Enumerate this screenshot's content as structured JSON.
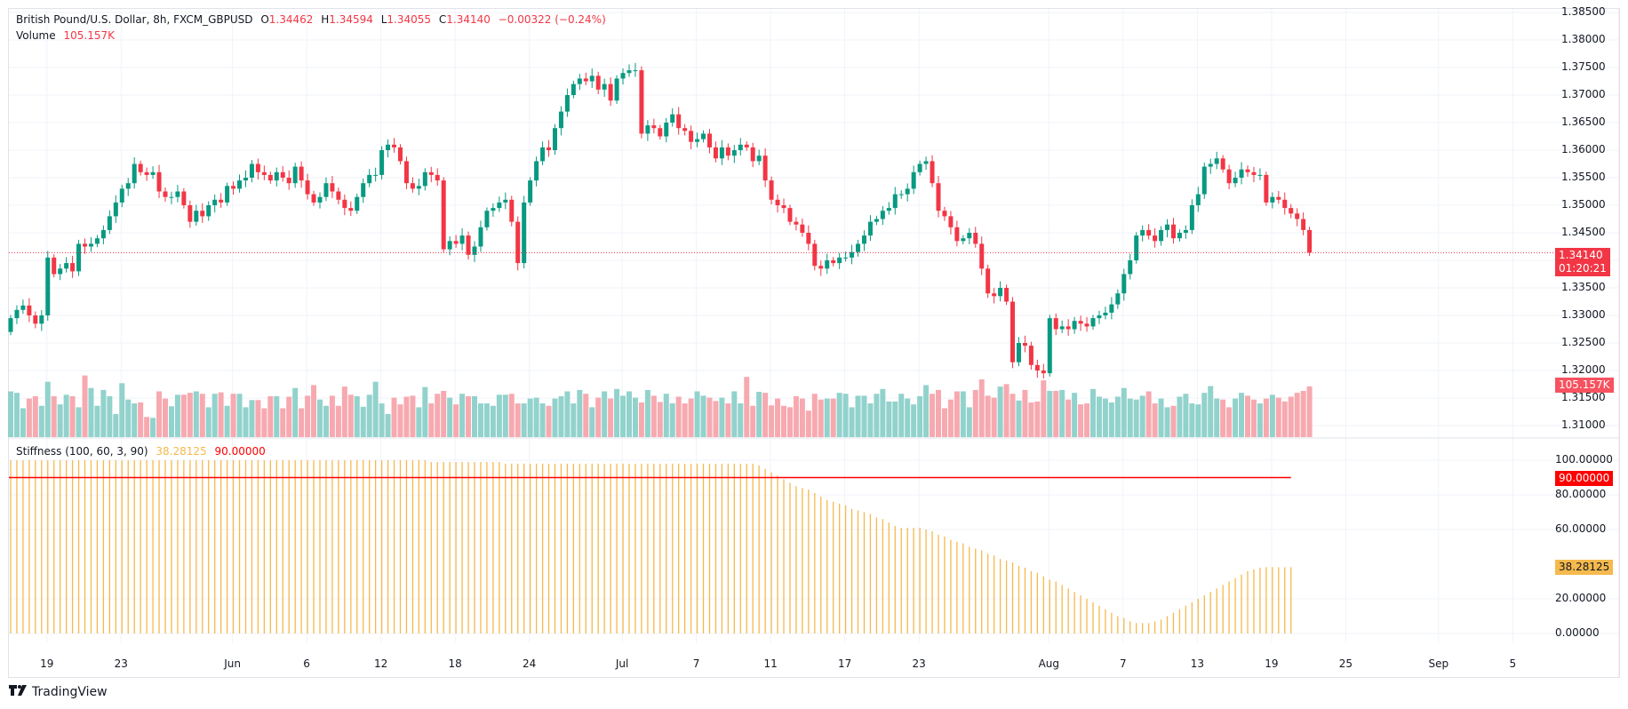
{
  "header": {
    "symbol": "British Pound/U.S. Dollar, 8h, FXCM_GBPUSD",
    "open_label": "O",
    "open": "1.34462",
    "high_label": "H",
    "high": "1.34594",
    "low_label": "L",
    "low": "1.34055",
    "close_label": "C",
    "close": "1.34140",
    "change": "−0.00322 (−0.24%)",
    "volume_label": "Volume",
    "volume_value": "105.157K"
  },
  "stiffness_legend": {
    "name": "Stiffness (100, 60, 3, 90)",
    "value": "38.28125",
    "threshold": "90.00000"
  },
  "price_tags": {
    "last_price": "1.34140",
    "countdown": "01:20:21",
    "volume": "105.157K",
    "threshold": "90.00000",
    "stiffness": "38.28125"
  },
  "branding": {
    "logo_text": "TradingView",
    "logo_mark": "TV"
  },
  "colors": {
    "up": "#089981",
    "down": "#f23645",
    "vol_up": "#92d2cc",
    "vol_down": "#f7a9b0",
    "stiffness": "#f5b94d",
    "threshold": "#ff0000",
    "grid": "#f0f3fa"
  },
  "chart_data": [
    {
      "type": "candlestick",
      "title": "British Pound/U.S. Dollar, 8h, FXCM_GBPUSD",
      "ylim": [
        1.3075,
        1.3875
      ],
      "yticks": [
        "1.38500",
        "1.38000",
        "1.37500",
        "1.37000",
        "1.36500",
        "1.36000",
        "1.35500",
        "1.35000",
        "1.34500",
        "1.34000",
        "1.33500",
        "1.33000",
        "1.32500",
        "1.32000",
        "1.31500",
        "1.31000"
      ],
      "ytick_values": [
        1.385,
        1.38,
        1.375,
        1.37,
        1.365,
        1.36,
        1.355,
        1.35,
        1.345,
        1.34,
        1.335,
        1.33,
        1.325,
        1.32,
        1.315,
        1.31
      ],
      "xticks": [
        {
          "label": "19",
          "bar": 5
        },
        {
          "label": "23",
          "bar": 17
        },
        {
          "label": "Jun",
          "bar": 35
        },
        {
          "label": "6",
          "bar": 47
        },
        {
          "label": "12",
          "bar": 59
        },
        {
          "label": "18",
          "bar": 71
        },
        {
          "label": "24",
          "bar": 83
        },
        {
          "label": "Jul",
          "bar": 98
        },
        {
          "label": "7",
          "bar": 110
        },
        {
          "label": "11",
          "bar": 122
        },
        {
          "label": "17",
          "bar": 134
        },
        {
          "label": "23",
          "bar": 146
        },
        {
          "label": "Aug",
          "bar": 167
        },
        {
          "label": "7",
          "bar": 179
        },
        {
          "label": "13",
          "bar": 191
        },
        {
          "label": "19",
          "bar": 203
        },
        {
          "label": "25",
          "bar": 215
        },
        {
          "label": "Sep",
          "bar": 230
        },
        {
          "label": "5",
          "bar": 242
        }
      ],
      "last_close": 1.3414,
      "closes": [
        1.3295,
        1.331,
        1.3318,
        1.33,
        1.3285,
        1.33,
        1.3405,
        1.3375,
        1.3385,
        1.3395,
        1.338,
        1.343,
        1.3425,
        1.343,
        1.344,
        1.3455,
        1.348,
        1.3505,
        1.353,
        1.354,
        1.3575,
        1.356,
        1.3555,
        1.356,
        1.3525,
        1.3515,
        1.3515,
        1.3525,
        1.35,
        1.347,
        1.349,
        1.348,
        1.35,
        1.351,
        1.3505,
        1.3535,
        1.353,
        1.3545,
        1.355,
        1.3575,
        1.356,
        1.3555,
        1.3545,
        1.356,
        1.355,
        1.354,
        1.357,
        1.3545,
        1.352,
        1.3505,
        1.3515,
        1.354,
        1.3525,
        1.351,
        1.3495,
        1.349,
        1.3515,
        1.354,
        1.3555,
        1.3555,
        1.36,
        1.361,
        1.3605,
        1.358,
        1.354,
        1.353,
        1.3535,
        1.356,
        1.3555,
        1.3545,
        1.342,
        1.3435,
        1.343,
        1.3445,
        1.341,
        1.3425,
        1.346,
        1.349,
        1.3495,
        1.3505,
        1.351,
        1.347,
        1.3395,
        1.3505,
        1.3545,
        1.358,
        1.3605,
        1.36,
        1.364,
        1.367,
        1.37,
        1.372,
        1.373,
        1.3725,
        1.3735,
        1.371,
        1.372,
        1.369,
        1.373,
        1.374,
        1.3745,
        1.3745,
        1.363,
        1.3645,
        1.364,
        1.3625,
        1.365,
        1.3665,
        1.364,
        1.3635,
        1.3615,
        1.362,
        1.363,
        1.3605,
        1.3585,
        1.3605,
        1.359,
        1.36,
        1.361,
        1.3605,
        1.358,
        1.359,
        1.3545,
        1.351,
        1.35,
        1.3495,
        1.347,
        1.3465,
        1.345,
        1.343,
        1.339,
        1.3385,
        1.34,
        1.3395,
        1.3405,
        1.3405,
        1.3415,
        1.343,
        1.3445,
        1.347,
        1.3475,
        1.349,
        1.3495,
        1.352,
        1.352,
        1.353,
        1.356,
        1.3575,
        1.358,
        1.354,
        1.349,
        1.348,
        1.346,
        1.3435,
        1.344,
        1.345,
        1.343,
        1.3385,
        1.334,
        1.3335,
        1.335,
        1.3325,
        1.3215,
        1.325,
        1.3245,
        1.321,
        1.32,
        1.3195,
        1.3295,
        1.3275,
        1.328,
        1.3275,
        1.329,
        1.3285,
        1.328,
        1.3295,
        1.33,
        1.3305,
        1.332,
        1.334,
        1.3375,
        1.34,
        1.3445,
        1.3455,
        1.3445,
        1.3435,
        1.3455,
        1.3465,
        1.344,
        1.345,
        1.3455,
        1.35,
        1.352,
        1.357,
        1.3575,
        1.3585,
        1.3565,
        1.354,
        1.355,
        1.3565,
        1.356,
        1.3555,
        1.3555,
        1.3505,
        1.3515,
        1.351,
        1.3495,
        1.3485,
        1.3475,
        1.3455,
        1.3414
      ],
      "first_open": 1.327
    },
    {
      "type": "bar",
      "title": "Volume",
      "unit": "K",
      "last_value": 105.157,
      "values": [
        95,
        92,
        60,
        80,
        85,
        65,
        115,
        85,
        68,
        88,
        85,
        62,
        128,
        102,
        65,
        98,
        85,
        48,
        112,
        78,
        70,
        72,
        42,
        40,
        95,
        80,
        64,
        88,
        88,
        92,
        95,
        90,
        62,
        90,
        93,
        65,
        90,
        90,
        62,
        77,
        77,
        60,
        85,
        85,
        60,
        84,
        102,
        60,
        86,
        108,
        78,
        65,
        86,
        65,
        105,
        88,
        85,
        63,
        88,
        115,
        70,
        48,
        82,
        68,
        84,
        86,
        62,
        104,
        70,
        90,
        96,
        82,
        68,
        90,
        85,
        85,
        70,
        70,
        65,
        88,
        88,
        90,
        70,
        70,
        80,
        82,
        70,
        65,
        80,
        85,
        95,
        70,
        98,
        90,
        62,
        82,
        95,
        80,
        100,
        86,
        95,
        82,
        72,
        98,
        86,
        73,
        90,
        70,
        84,
        70,
        80,
        95,
        86,
        82,
        75,
        82,
        70,
        95,
        70,
        125,
        65,
        94,
        92,
        66,
        80,
        65,
        62,
        85,
        80,
        55,
        90,
        78,
        80,
        80,
        92,
        90,
        62,
        86,
        86,
        70,
        90,
        100,
        74,
        74,
        90,
        80,
        68,
        85,
        108,
        90,
        98,
        60,
        78,
        95,
        95,
        62,
        98,
        120,
        86,
        82,
        105,
        110,
        90,
        76,
        98,
        72,
        74,
        118,
        96,
        96,
        98,
        78,
        92,
        68,
        70,
        100,
        84,
        80,
        72,
        84,
        102,
        80,
        78,
        86,
        95,
        70,
        80,
        62,
        65,
        84,
        90,
        70,
        68,
        92,
        106,
        80,
        78,
        62,
        80,
        92,
        86,
        78,
        70,
        80,
        88,
        82,
        74,
        84,
        92,
        96,
        105.157
      ]
    },
    {
      "type": "bar",
      "title": "Stiffness (100, 60, 3, 90)",
      "ylim": [
        -5,
        107
      ],
      "yticks": [
        "100.00000",
        "80.00000",
        "60.00000",
        "20.00000",
        "0.00000"
      ],
      "ytick_values": [
        100,
        80,
        60,
        20,
        0
      ],
      "threshold": 90,
      "last_value": 38.28125,
      "values": [
        100,
        100,
        100,
        100,
        100,
        100,
        100,
        100,
        100,
        100,
        100,
        100,
        100,
        100,
        100,
        100,
        100,
        100,
        100,
        100,
        100,
        100,
        100,
        100,
        100,
        100,
        100,
        100,
        100,
        100,
        100,
        100,
        100,
        100,
        100,
        100,
        100,
        100,
        100,
        100,
        100,
        100,
        100,
        100,
        100,
        100,
        100,
        100,
        100,
        100,
        100,
        100,
        100,
        100,
        100,
        100,
        100,
        100,
        100,
        100,
        100,
        100,
        100,
        100,
        100,
        100,
        100,
        100,
        99,
        99,
        99,
        99,
        99,
        99,
        99,
        99,
        99,
        99,
        99,
        99,
        98,
        98,
        98,
        98,
        98,
        98,
        98,
        98,
        98,
        98,
        98,
        98,
        98,
        98,
        98,
        98,
        98,
        98,
        98,
        98,
        98,
        98,
        98,
        98,
        98,
        98,
        98,
        98,
        98,
        98,
        98,
        98,
        98,
        98,
        98,
        98,
        98,
        98,
        98,
        98,
        98,
        97,
        95,
        93,
        91,
        89,
        87,
        85,
        84,
        83,
        81,
        79,
        77,
        76,
        75,
        74,
        72,
        71,
        70,
        69,
        67,
        66,
        64,
        62,
        61,
        61,
        61,
        61,
        60,
        59,
        57,
        56,
        54,
        53,
        52,
        50,
        49,
        48,
        46,
        45,
        43,
        42,
        41,
        39,
        38,
        36,
        35,
        33,
        31,
        30,
        28,
        26,
        24,
        22,
        20,
        18,
        16,
        14,
        12,
        10,
        9,
        7,
        6,
        6,
        6,
        7,
        8,
        10,
        12,
        14,
        16,
        18,
        20,
        22,
        24,
        26,
        28,
        30,
        32,
        34,
        36,
        37,
        38,
        38.28,
        38.28,
        38.28,
        38.28,
        38.28
      ]
    }
  ]
}
